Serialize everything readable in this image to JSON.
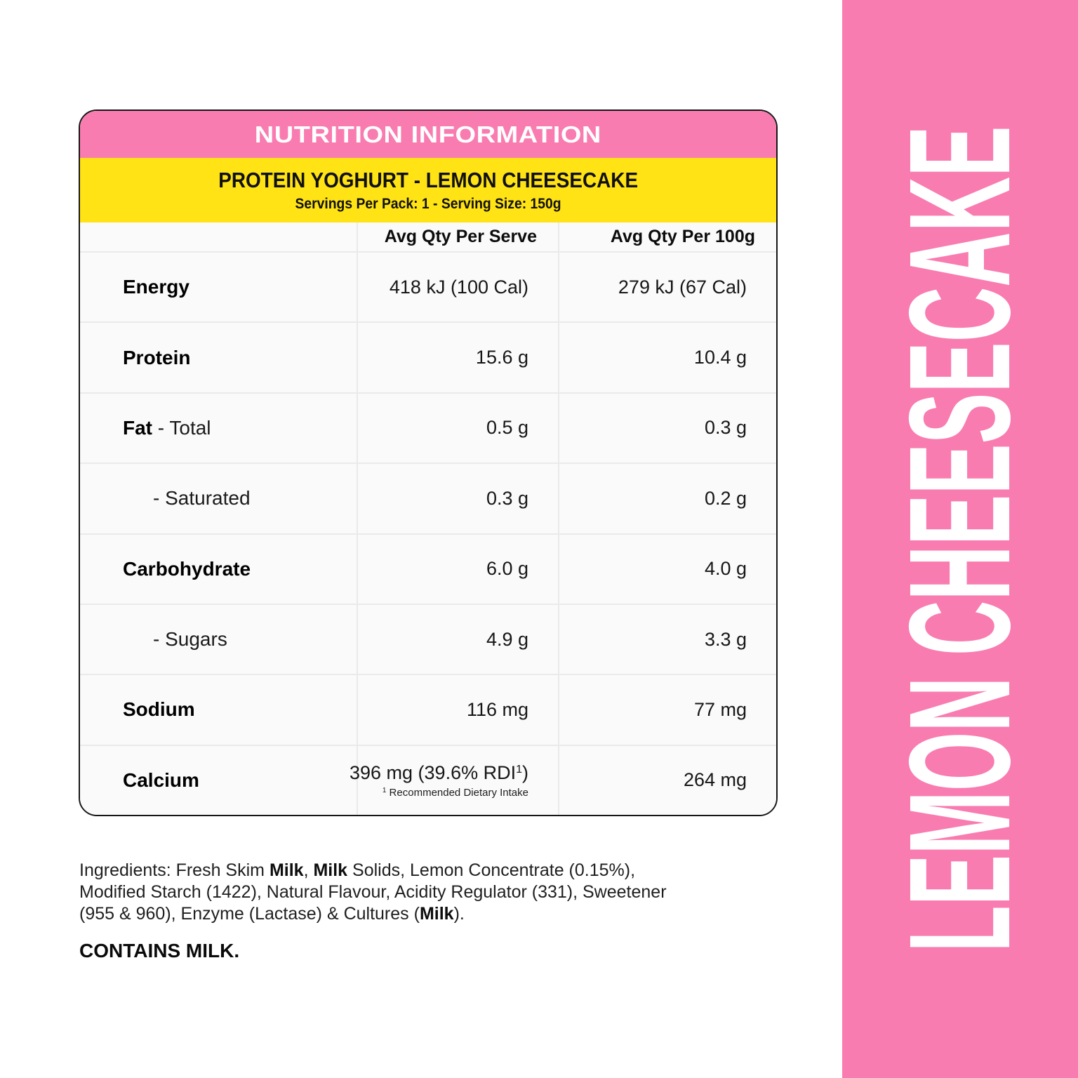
{
  "page": {
    "background": "#ffffff",
    "accent_pink": "#f97cb1",
    "accent_yellow": "#ffe314",
    "row_background": "#fafafa",
    "grid_line": "#eaeaea"
  },
  "card": {
    "header": "NUTRITION INFORMATION",
    "product_title": "PROTEIN YOGHURT - LEMON CHEESECAKE",
    "serving_info": "Servings Per Pack: 1 - Serving Size: 150g",
    "table": {
      "columns": [
        "",
        "Avg Qty Per Serve",
        "Avg Qty Per 100g"
      ],
      "rows": [
        {
          "label_bold": "Energy",
          "label_rest": "",
          "indent": false,
          "serve": "418 kJ (100 Cal)",
          "per100": "279 kJ (67 Cal)"
        },
        {
          "label_bold": "Protein",
          "label_rest": "",
          "indent": false,
          "serve": "15.6 g",
          "per100": "10.4 g"
        },
        {
          "label_bold": "Fat",
          "label_rest": " - Total",
          "indent": false,
          "serve": "0.5 g",
          "per100": "0.3 g"
        },
        {
          "label_bold": "",
          "label_rest": "- Saturated",
          "indent": true,
          "serve": "0.3 g",
          "per100": "0.2 g"
        },
        {
          "label_bold": "Carbohydrate",
          "label_rest": "",
          "indent": false,
          "serve": "6.0 g",
          "per100": "4.0 g"
        },
        {
          "label_bold": "",
          "label_rest": "- Sugars",
          "indent": true,
          "serve": "4.9 g",
          "per100": "3.3 g"
        },
        {
          "label_bold": "Sodium",
          "label_rest": "",
          "indent": false,
          "serve": "116 mg",
          "per100": "77 mg"
        },
        {
          "label_bold": "Calcium",
          "label_rest": "",
          "indent": false,
          "serve": {
            "prefix": "396 mg (39.6% RDI",
            "sup": "1",
            "suffix": ")"
          },
          "serve_footnote": {
            "sup": "1",
            "text": " Recommended Dietary Intake"
          },
          "per100": "264 mg"
        }
      ]
    }
  },
  "ingredients": {
    "lines": [
      [
        {
          "t": "Ingredients: Fresh Skim ",
          "b": false
        },
        {
          "t": "Milk",
          "b": true
        },
        {
          "t": ", ",
          "b": false
        },
        {
          "t": "Milk",
          "b": true
        },
        {
          "t": " Solids, Lemon Concentrate (0.15%),",
          "b": false
        }
      ],
      [
        {
          "t": "Modified Starch (1422), Natural Flavour, Acidity Regulator (331), Sweetener",
          "b": false
        }
      ],
      [
        {
          "t": "(955 & 960), Enzyme (Lactase) & Cultures (",
          "b": false
        },
        {
          "t": "Milk",
          "b": true
        },
        {
          "t": ").",
          "b": false
        }
      ]
    ],
    "contains": "CONTAINS MILK."
  },
  "side_banner": {
    "text": "LEMON CHEESECAKE",
    "background": "#f97cb1",
    "text_color": "#ffffff"
  }
}
